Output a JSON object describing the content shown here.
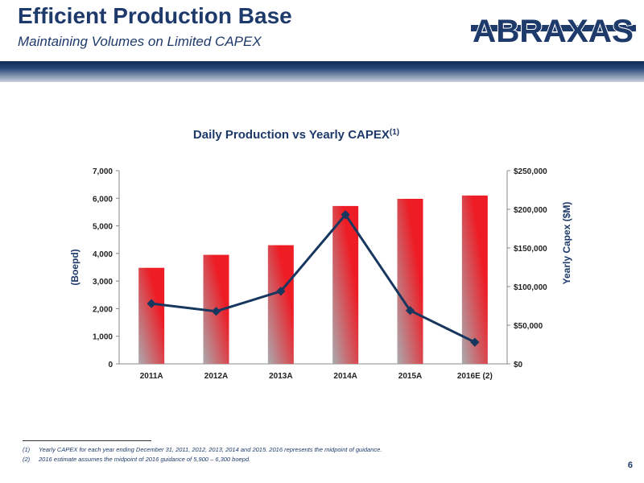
{
  "header": {
    "title": "Efficient Production Base",
    "subtitle": "Maintaining Volumes on Limited CAPEX",
    "logo_text": "ABRAXAS"
  },
  "colors": {
    "navy": "#1e3a6b",
    "bar_red": "#ee1c25",
    "bar_gray": "#a9aaae",
    "line": "#17375e"
  },
  "chart_data": {
    "type": "bar",
    "title": "Daily Production vs Yearly CAPEX",
    "title_superscript": "(1)",
    "categories": [
      "2011A",
      "2012A",
      "2013A",
      "2014A",
      "2015A",
      "2016E (2)"
    ],
    "series": [
      {
        "axis": "left",
        "type": "bar",
        "values": [
          3480,
          3950,
          4300,
          5720,
          5980,
          6100
        ]
      },
      {
        "axis": "right",
        "type": "line",
        "values": [
          78000,
          68000,
          94000,
          193000,
          69000,
          28000
        ]
      }
    ],
    "ylabel": "(Boepd)",
    "ylim": [
      0,
      7000
    ],
    "yticks": [
      "0",
      "1,000",
      "2,000",
      "3,000",
      "4,000",
      "5,000",
      "6,000",
      "7,000"
    ],
    "y2label": "Yearly Capex ($M)",
    "y2lim": [
      0,
      250000
    ],
    "y2ticks": [
      "$0",
      "$50,000",
      "$100,000",
      "$150,000",
      "$200,000",
      "$250,000"
    ],
    "grid": false,
    "legend": "none"
  },
  "footnotes": [
    {
      "num": "(1)",
      "text": "Yearly CAPEX for each year ending December 31, 2011, 2012, 2013, 2014 and 2015.   2016 represents the midpoint of guidance."
    },
    {
      "num": "(2)",
      "text": "2016 estimate assumes the midpoint of 2016 guidance of 5,900 – 6,300 boepd."
    }
  ],
  "page_number": "6"
}
